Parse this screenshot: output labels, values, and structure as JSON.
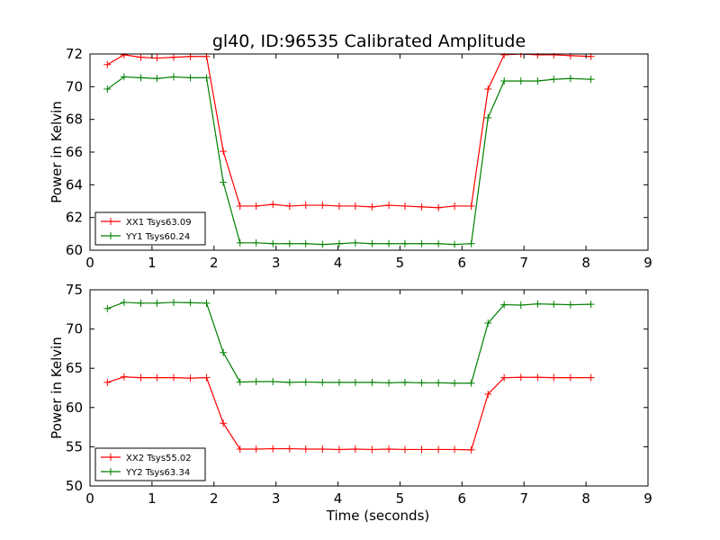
{
  "figure_title": "gl40, ID:96535 Calibrated Amplitude",
  "colors": {
    "xx": "#ff0000",
    "yy": "#008000",
    "axes": "#000000",
    "background": "#ffffff"
  },
  "chart_data": [
    {
      "type": "line",
      "title": "gl40, ID:96535 Calibrated Amplitude",
      "xlabel": "",
      "ylabel": "Power in Kelvin",
      "xlim": [
        0,
        9
      ],
      "ylim": [
        60,
        72
      ],
      "xticks": [
        "0",
        "1",
        "2",
        "3",
        "4",
        "5",
        "6",
        "7",
        "8",
        "9"
      ],
      "yticks": [
        "60",
        "62",
        "64",
        "66",
        "68",
        "70",
        "72"
      ],
      "grid": false,
      "legend_position": "lower-left",
      "x": [
        0.28,
        0.55,
        0.82,
        1.08,
        1.35,
        1.62,
        1.88,
        2.15,
        2.42,
        2.68,
        2.95,
        3.22,
        3.48,
        3.75,
        4.02,
        4.28,
        4.55,
        4.82,
        5.08,
        5.35,
        5.62,
        5.88,
        6.15,
        6.42,
        6.68,
        6.95,
        7.22,
        7.48,
        7.75,
        8.08
      ],
      "series": [
        {
          "name": "XX1 Tsys63.09",
          "color": "#ff0000",
          "values": [
            71.35,
            71.95,
            71.8,
            71.75,
            71.8,
            71.85,
            71.85,
            66.05,
            62.7,
            62.7,
            62.8,
            62.7,
            62.75,
            62.75,
            62.7,
            62.7,
            62.65,
            62.75,
            62.7,
            62.65,
            62.6,
            62.7,
            62.7,
            69.85,
            71.95,
            72.0,
            71.95,
            71.95,
            71.9,
            71.85
          ]
        },
        {
          "name": "YY1 Tsys60.24",
          "color": "#008000",
          "values": [
            69.85,
            70.6,
            70.55,
            70.5,
            70.6,
            70.55,
            70.55,
            64.15,
            60.45,
            60.45,
            60.4,
            60.4,
            60.4,
            60.35,
            60.4,
            60.45,
            60.4,
            60.4,
            60.4,
            60.4,
            60.4,
            60.35,
            60.4,
            68.1,
            70.35,
            70.35,
            70.35,
            70.45,
            70.5,
            70.45
          ]
        }
      ]
    },
    {
      "type": "line",
      "title": "",
      "xlabel": "Time (seconds)",
      "ylabel": "Power in Kelvin",
      "xlim": [
        0,
        9
      ],
      "ylim": [
        50,
        75
      ],
      "xticks": [
        "0",
        "1",
        "2",
        "3",
        "4",
        "5",
        "6",
        "7",
        "8",
        "9"
      ],
      "yticks": [
        "50",
        "55",
        "60",
        "65",
        "70",
        "75"
      ],
      "grid": false,
      "legend_position": "lower-left",
      "x": [
        0.28,
        0.55,
        0.82,
        1.08,
        1.35,
        1.62,
        1.88,
        2.15,
        2.42,
        2.68,
        2.95,
        3.22,
        3.48,
        3.75,
        4.02,
        4.28,
        4.55,
        4.82,
        5.08,
        5.35,
        5.62,
        5.88,
        6.15,
        6.42,
        6.68,
        6.95,
        7.22,
        7.48,
        7.75,
        8.08
      ],
      "series": [
        {
          "name": "XX2 Tsys55.02",
          "color": "#ff0000",
          "values": [
            63.2,
            63.9,
            63.8,
            63.8,
            63.8,
            63.75,
            63.8,
            58.0,
            54.7,
            54.7,
            54.75,
            54.75,
            54.7,
            54.7,
            54.65,
            54.7,
            54.65,
            54.7,
            54.65,
            54.65,
            54.65,
            54.65,
            54.6,
            61.7,
            63.8,
            63.85,
            63.85,
            63.8,
            63.8,
            63.8
          ]
        },
        {
          "name": "YY2 Tsys63.34",
          "color": "#008000",
          "values": [
            72.6,
            73.4,
            73.3,
            73.3,
            73.4,
            73.35,
            73.3,
            67.0,
            63.25,
            63.3,
            63.3,
            63.2,
            63.25,
            63.2,
            63.2,
            63.2,
            63.2,
            63.15,
            63.2,
            63.15,
            63.15,
            63.1,
            63.1,
            70.75,
            73.1,
            73.05,
            73.2,
            73.15,
            73.1,
            73.15
          ]
        }
      ]
    }
  ]
}
